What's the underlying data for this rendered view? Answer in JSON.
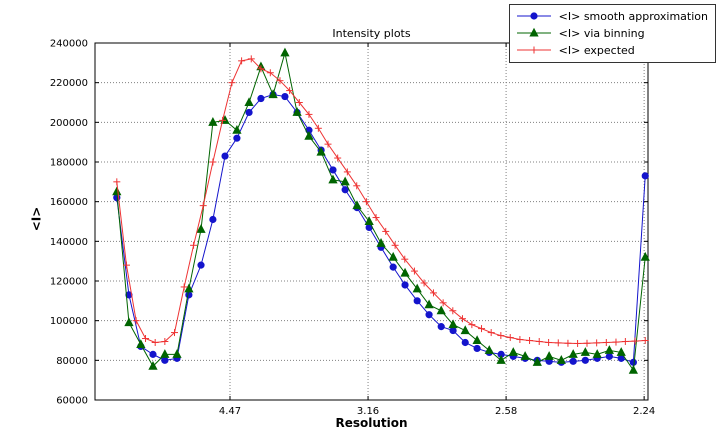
{
  "chart_data": {
    "type": "line",
    "title": "Intensity plots",
    "xlabel": "Resolution",
    "ylabel": "<I>",
    "grid": true,
    "legend_position": "upper-right-outside",
    "x_axis": {
      "range": [
        0.0011,
        0.2014
      ],
      "ticks": [
        {
          "v": 0.05,
          "label": "4.47"
        },
        {
          "v": 0.1,
          "label": "3.16"
        },
        {
          "v": 0.15,
          "label": "2.58"
        },
        {
          "v": 0.2,
          "label": "2.24"
        }
      ]
    },
    "y_axis": {
      "range": [
        60000,
        240000
      ],
      "ticks": [
        60000,
        80000,
        100000,
        120000,
        140000,
        160000,
        180000,
        200000,
        220000,
        240000
      ]
    },
    "series": [
      {
        "name": "<I> smooth approximation",
        "color": "#1414cc",
        "marker": "circle",
        "x": [
          0.009,
          0.0134,
          0.0177,
          0.0221,
          0.0264,
          0.0308,
          0.0351,
          0.0395,
          0.0438,
          0.0482,
          0.0525,
          0.0569,
          0.0612,
          0.0656,
          0.0699,
          0.0743,
          0.0786,
          0.083,
          0.0873,
          0.0917,
          0.096,
          0.1004,
          0.1047,
          0.1091,
          0.1134,
          0.1178,
          0.1221,
          0.1265,
          0.1308,
          0.1352,
          0.1395,
          0.1439,
          0.1482,
          0.1526,
          0.1569,
          0.1613,
          0.1656,
          0.17,
          0.1743,
          0.1787,
          0.183,
          0.1874,
          0.1917,
          0.1961,
          0.2004
        ],
        "y": [
          162000,
          113000,
          87000,
          83000,
          80000,
          81000,
          113000,
          128000,
          151000,
          183000,
          192000,
          205000,
          212000,
          214000,
          213000,
          205000,
          196000,
          186000,
          176000,
          166000,
          157000,
          147000,
          137000,
          127000,
          118000,
          110000,
          103000,
          97000,
          95000,
          89000,
          86000,
          84000,
          83000,
          82000,
          81000,
          80000,
          79500,
          79000,
          79500,
          80000,
          81000,
          82000,
          81000,
          79000,
          173000
        ]
      },
      {
        "name": "<I> via binning",
        "color": "#006400",
        "marker": "triangle",
        "x": [
          0.009,
          0.0134,
          0.0177,
          0.0221,
          0.0264,
          0.0308,
          0.0351,
          0.0395,
          0.0438,
          0.0482,
          0.0525,
          0.0569,
          0.0612,
          0.0656,
          0.0699,
          0.0743,
          0.0786,
          0.083,
          0.0873,
          0.0917,
          0.096,
          0.1004,
          0.1047,
          0.1091,
          0.1134,
          0.1178,
          0.1221,
          0.1265,
          0.1308,
          0.1352,
          0.1395,
          0.1439,
          0.1482,
          0.1526,
          0.1569,
          0.1613,
          0.1656,
          0.17,
          0.1743,
          0.1787,
          0.183,
          0.1874,
          0.1917,
          0.1961,
          0.2004
        ],
        "y": [
          165000,
          99000,
          88000,
          77000,
          83000,
          83000,
          116000,
          146000,
          200000,
          201000,
          196000,
          210000,
          228000,
          214000,
          235000,
          205000,
          193000,
          185000,
          171000,
          170000,
          158000,
          150000,
          139000,
          132000,
          124000,
          116000,
          108000,
          105000,
          98000,
          95000,
          90000,
          85000,
          80000,
          84000,
          82000,
          79000,
          82000,
          80000,
          83000,
          84000,
          83000,
          85000,
          84000,
          75000,
          132000
        ]
      },
      {
        "name": "<I> expected",
        "color": "#ee3333",
        "marker": "plus",
        "x": [
          0.009,
          0.0125,
          0.016,
          0.0194,
          0.0229,
          0.0264,
          0.0299,
          0.0334,
          0.0368,
          0.0403,
          0.0438,
          0.0473,
          0.0507,
          0.0542,
          0.0577,
          0.0612,
          0.0646,
          0.0681,
          0.0716,
          0.0751,
          0.0786,
          0.082,
          0.0855,
          0.089,
          0.0925,
          0.0959,
          0.0994,
          0.1029,
          0.1064,
          0.1098,
          0.1133,
          0.1168,
          0.1203,
          0.1237,
          0.1272,
          0.1307,
          0.1342,
          0.1376,
          0.1411,
          0.1446,
          0.1481,
          0.1515,
          0.155,
          0.1585,
          0.162,
          0.1654,
          0.1689,
          0.1724,
          0.1759,
          0.1793,
          0.1828,
          0.1863,
          0.1898,
          0.1932,
          0.1967,
          0.2004
        ],
        "y": [
          170000,
          128000,
          100000,
          91000,
          89000,
          89500,
          94000,
          117000,
          138000,
          158000,
          180000,
          201000,
          220000,
          231000,
          232000,
          227000,
          225000,
          221000,
          216000,
          210000,
          204000,
          197000,
          189000,
          182000,
          175000,
          168000,
          160000,
          152000,
          145000,
          138000,
          131000,
          125000,
          119000,
          114000,
          109000,
          105000,
          101000,
          98000,
          96000,
          94000,
          92500,
          91500,
          90500,
          90000,
          89500,
          89000,
          88800,
          88600,
          88500,
          88600,
          88800,
          89000,
          89200,
          89500,
          89700,
          90000
        ]
      }
    ]
  }
}
